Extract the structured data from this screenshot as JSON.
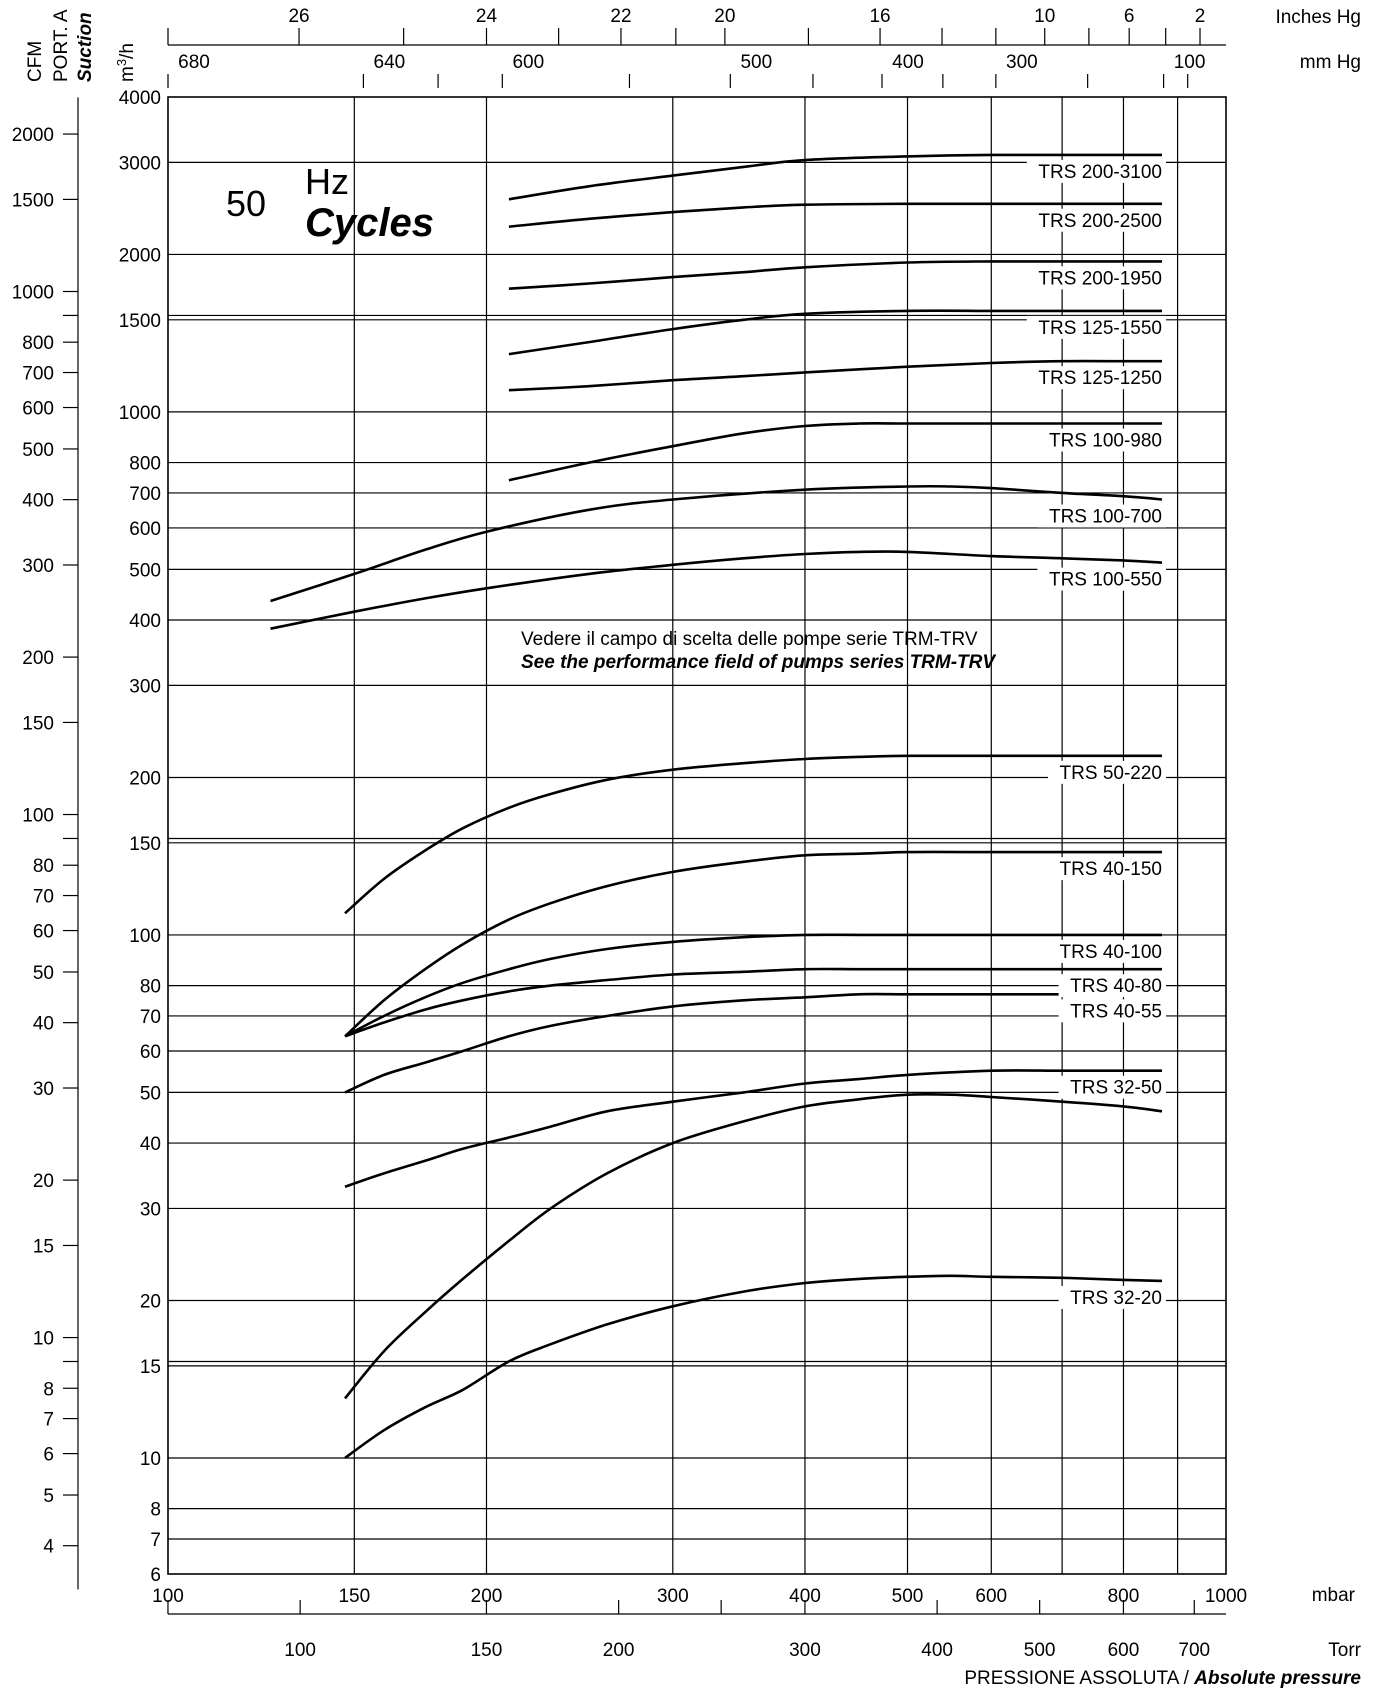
{
  "chart_data": {
    "type": "line",
    "title": "",
    "frequency_label": {
      "number": "50",
      "unit": "Hz",
      "cycles": "Cycles"
    },
    "x_axis": {
      "unit": "mbar",
      "scale": "log",
      "range": [
        100,
        1000
      ],
      "ticks": [
        100,
        150,
        200,
        300,
        400,
        500,
        600,
        800,
        1000
      ],
      "grid": [
        150,
        200,
        300,
        400,
        500,
        600,
        700,
        800,
        900
      ]
    },
    "x_axis_torr": {
      "unit": "Torr",
      "ticks": [
        100,
        150,
        200,
        300,
        400,
        500,
        600,
        700
      ],
      "tick_positions_torr": [
        75,
        100,
        150,
        200,
        250,
        300,
        400,
        500,
        600,
        700
      ]
    },
    "x_axis_mmhg": {
      "unit": "mm Hg",
      "labels": [
        {
          "value": 680,
          "pos_mbar": 100
        },
        {
          "value": 640,
          "pos_mbar": 153
        },
        {
          "value": 600,
          "pos_mbar": 207
        },
        {
          "value": 500,
          "pos_mbar": 340
        },
        {
          "value": 400,
          "pos_mbar": 473
        },
        {
          "value": 300,
          "pos_mbar": 606
        },
        {
          "value": 100,
          "pos_mbar": 873
        }
      ],
      "ticks_mbar": [
        100,
        153,
        180,
        207,
        273,
        340,
        407,
        473,
        540,
        606,
        740,
        873,
        920
      ]
    },
    "x_axis_inhg": {
      "unit": "Inches Hg",
      "labels": [
        {
          "value": 26,
          "pos_mbar": 133
        },
        {
          "value": 24,
          "pos_mbar": 200
        },
        {
          "value": 22,
          "pos_mbar": 268
        },
        {
          "value": 20,
          "pos_mbar": 336
        },
        {
          "value": 16,
          "pos_mbar": 471
        },
        {
          "value": 10,
          "pos_mbar": 674
        },
        {
          "value": 6,
          "pos_mbar": 810
        },
        {
          "value": 2,
          "pos_mbar": 945
        }
      ],
      "ticks_mbar": [
        100,
        133,
        167,
        200,
        234,
        268,
        302,
        336,
        403,
        471,
        539,
        606,
        674,
        742,
        810,
        877,
        945
      ]
    },
    "y_axis": {
      "unit": "m3/h",
      "scale": "log",
      "range": [
        6,
        4000
      ],
      "ticks": [
        6,
        7,
        8,
        10,
        15,
        20,
        30,
        40,
        50,
        60,
        70,
        80,
        100,
        150,
        200,
        300,
        400,
        500,
        600,
        700,
        800,
        1000,
        1500,
        2000,
        3000,
        4000
      ],
      "tick_labels": [
        "6",
        "7",
        "8",
        "10",
        "15",
        "20",
        "30",
        "40",
        "50",
        "60",
        "70",
        "80",
        "100",
        "150",
        "200",
        "300",
        "400",
        "500",
        "600",
        "700",
        "800",
        "1000",
        "1500",
        "2000",
        "3000",
        "4000"
      ]
    },
    "y_axis_cfm": {
      "unit": "CFM",
      "ticks": [
        4,
        5,
        6,
        7,
        8,
        10,
        15,
        20,
        30,
        40,
        50,
        60,
        70,
        80,
        100,
        150,
        200,
        300,
        400,
        500,
        600,
        700,
        800,
        1000,
        1500,
        2000
      ],
      "tick_labels": [
        "4",
        "5",
        "6",
        "7",
        "8",
        "10",
        "15",
        "20",
        "30",
        "40",
        "50",
        "60",
        "70",
        "80",
        "100",
        "150",
        "200",
        "300",
        "400",
        "500",
        "600",
        "700",
        "800",
        "1000",
        "1500",
        "2000"
      ],
      "minor_ticks": [
        9,
        90,
        900
      ]
    },
    "y_axis_title": {
      "line1": "CFM",
      "line2": "PORT. A",
      "line3": "Suction"
    },
    "note": {
      "line1": "Vedere il campo di scelta delle pompe serie TRM-TRV",
      "line2": "See the performance field of pumps series TRM-TRV"
    },
    "footer": {
      "it": "PRESSIONE ASSOLUTA / ",
      "en": "Absolute pressure"
    },
    "series": [
      {
        "name": "TRS 200-3100",
        "x": [
          210,
          250,
          300,
          350,
          400,
          500,
          600,
          700,
          800,
          870
        ],
        "y": [
          2550,
          2700,
          2830,
          2940,
          3030,
          3080,
          3100,
          3100,
          3100,
          3100
        ]
      },
      {
        "name": "TRS 200-2500",
        "x": [
          210,
          250,
          300,
          350,
          400,
          500,
          600,
          700,
          800,
          870
        ],
        "y": [
          2260,
          2340,
          2410,
          2460,
          2490,
          2500,
          2500,
          2500,
          2500,
          2500
        ]
      },
      {
        "name": "TRS 200-1950",
        "x": [
          210,
          250,
          300,
          350,
          400,
          500,
          600,
          700,
          800,
          870
        ],
        "y": [
          1720,
          1760,
          1810,
          1850,
          1890,
          1930,
          1940,
          1940,
          1940,
          1940
        ]
      },
      {
        "name": "TRS 125-1550",
        "x": [
          210,
          250,
          300,
          350,
          400,
          500,
          600,
          700,
          800,
          870
        ],
        "y": [
          1290,
          1360,
          1440,
          1500,
          1540,
          1560,
          1560,
          1560,
          1560,
          1560
        ]
      },
      {
        "name": "TRS 125-1250",
        "x": [
          210,
          250,
          300,
          350,
          400,
          500,
          600,
          700,
          800,
          870
        ],
        "y": [
          1100,
          1120,
          1150,
          1170,
          1190,
          1220,
          1240,
          1250,
          1250,
          1250
        ]
      },
      {
        "name": "TRS 100-980",
        "x": [
          210,
          250,
          300,
          350,
          400,
          450,
          500,
          600,
          700,
          800,
          870
        ],
        "y": [
          740,
          800,
          860,
          910,
          940,
          950,
          950,
          950,
          950,
          950,
          950
        ]
      },
      {
        "name": "TRS 100-700",
        "x": [
          125,
          150,
          175,
          200,
          250,
          300,
          400,
          500,
          550,
          600,
          700,
          800,
          870
        ],
        "y": [
          435,
          490,
          545,
          590,
          650,
          680,
          710,
          720,
          720,
          715,
          700,
          690,
          680
        ]
      },
      {
        "name": "TRS 100-550",
        "x": [
          125,
          150,
          175,
          200,
          250,
          300,
          350,
          400,
          450,
          500,
          600,
          700,
          800,
          870
        ],
        "y": [
          385,
          415,
          440,
          460,
          490,
          510,
          525,
          535,
          540,
          540,
          530,
          525,
          520,
          515
        ]
      },
      {
        "name": "TRS 50-220",
        "x": [
          147,
          160,
          175,
          190,
          210,
          230,
          260,
          300,
          350,
          400,
          450,
          500,
          600,
          700,
          800,
          870
        ],
        "y": [
          110,
          128,
          145,
          160,
          175,
          186,
          198,
          207,
          213,
          217,
          219,
          220,
          220,
          220,
          220,
          220
        ]
      },
      {
        "name": "TRS 40-150",
        "x": [
          147,
          160,
          175,
          190,
          210,
          230,
          260,
          300,
          350,
          400,
          450,
          500,
          600,
          700,
          800,
          870
        ],
        "y": [
          64,
          75,
          86,
          96,
          107,
          115,
          124,
          132,
          138,
          142,
          143,
          144,
          144,
          144,
          144,
          144
        ]
      },
      {
        "name": "TRS 40-100",
        "x": [
          147,
          160,
          175,
          190,
          210,
          230,
          260,
          300,
          350,
          400,
          450,
          500,
          600,
          700,
          800,
          870
        ],
        "y": [
          64,
          70,
          76,
          81,
          86,
          90,
          94,
          97,
          99,
          100,
          100,
          100,
          100,
          100,
          100,
          100
        ]
      },
      {
        "name": "TRS 40-80",
        "x": [
          147,
          160,
          175,
          190,
          210,
          230,
          260,
          300,
          350,
          400,
          450,
          500,
          600,
          700,
          800,
          870
        ],
        "y": [
          64,
          68,
          72,
          75,
          78,
          80,
          82,
          84,
          85,
          86,
          86,
          86,
          86,
          86,
          86,
          86
        ]
      },
      {
        "name": "TRS 40-55",
        "x": [
          147,
          160,
          175,
          190,
          210,
          230,
          260,
          300,
          350,
          400,
          450,
          500,
          600,
          700,
          800,
          870
        ],
        "y": [
          50,
          54,
          57,
          60,
          64,
          67,
          70,
          73,
          75,
          76,
          77,
          77,
          77,
          77,
          77,
          77
        ]
      },
      {
        "name": "TRS 32-50",
        "x": [
          147,
          160,
          175,
          190,
          210,
          230,
          260,
          300,
          350,
          400,
          450,
          500,
          600,
          700,
          800,
          870
        ],
        "y": [
          33,
          35,
          37,
          39,
          41,
          43,
          46,
          48,
          50,
          52,
          53,
          54,
          55,
          55,
          55,
          55
        ]
      },
      {
        "name": "",
        "x": [
          147,
          160,
          175,
          190,
          210,
          230,
          260,
          300,
          350,
          400,
          450,
          500,
          550,
          600,
          700,
          800,
          870
        ],
        "y": [
          13,
          16,
          19,
          22,
          26,
          30,
          35,
          40,
          44,
          47,
          48.5,
          49.5,
          49.5,
          49,
          48,
          47,
          46
        ]
      },
      {
        "name": "TRS 32-20",
        "x": [
          147,
          160,
          175,
          190,
          210,
          230,
          260,
          300,
          350,
          400,
          450,
          500,
          550,
          600,
          700,
          800,
          870
        ],
        "y": [
          10,
          11.3,
          12.5,
          13.5,
          15.3,
          16.5,
          18,
          19.5,
          20.8,
          21.6,
          22,
          22.2,
          22.3,
          22.2,
          22.1,
          21.9,
          21.8
        ]
      }
    ]
  }
}
